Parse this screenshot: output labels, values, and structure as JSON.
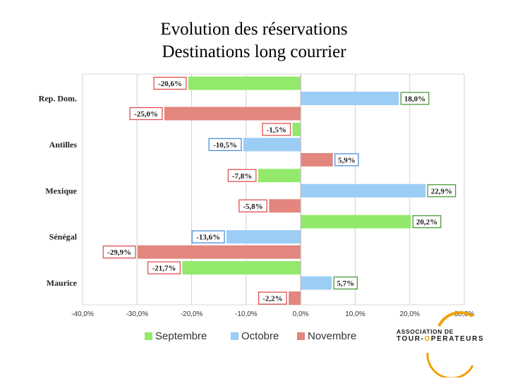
{
  "title_lines": [
    "Evolution des réservations",
    "Destinations long courrier"
  ],
  "chart_data": {
    "type": "bar",
    "orientation": "horizontal",
    "categories": [
      "Rep. Dom.",
      "Antilles",
      "Mexique",
      "Sénégal",
      "Maurice"
    ],
    "series": [
      {
        "name": "Septembre",
        "color": "#92e96b",
        "values": [
          -20.6,
          -1.5,
          -7.8,
          20.2,
          -21.7
        ],
        "labels": [
          "-20,6%",
          "-1,5%",
          "-7,8%",
          "20,2%",
          "-21,7%"
        ]
      },
      {
        "name": "Octobre",
        "color": "#9ccdf5",
        "values": [
          18.0,
          -10.5,
          22.9,
          -13.6,
          5.7
        ],
        "labels": [
          "18,0%",
          "-10,5%",
          "22,9%",
          "-13,6%",
          "5,7%"
        ]
      },
      {
        "name": "Novembre",
        "color": "#e3867d",
        "values": [
          -25.0,
          5.9,
          -5.8,
          -29.9,
          -2.2
        ],
        "labels": [
          "-25,0%",
          "5,9%",
          "-5,8%",
          "-29,9%",
          "-2,2%"
        ]
      }
    ],
    "xlim": [
      -40,
      30
    ],
    "x_ticks": [
      -40,
      -30,
      -20,
      -10,
      0,
      10,
      20,
      30
    ],
    "x_tick_labels": [
      "-40,0%",
      "-30,0%",
      "-20,0%",
      "-10,0%",
      "0,0%",
      "10,0%",
      "20,0%",
      "30,0%"
    ],
    "grid": true,
    "legend_position": "bottom",
    "xlabel": "",
    "ylabel": ""
  },
  "logo": {
    "line1": "ASSOCIATION DE",
    "line2_a": "TOUR-",
    "line2_o": "O",
    "line2_b": "PERATEURS",
    "ring_color": "#f2a000"
  }
}
